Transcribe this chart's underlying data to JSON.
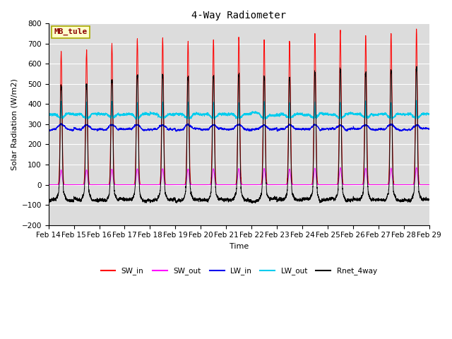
{
  "title": "4-Way Radiometer",
  "xlabel": "Time",
  "ylabel": "Solar Radiation (W/m2)",
  "ylim": [
    -200,
    800
  ],
  "yticks": [
    -200,
    -100,
    0,
    100,
    200,
    300,
    400,
    500,
    600,
    700,
    800
  ],
  "x_tick_labels": [
    "Feb 14",
    "Feb 15",
    "Feb 16",
    "Feb 17",
    "Feb 18",
    "Feb 19",
    "Feb 20",
    "Feb 21",
    "Feb 22",
    "Feb 23",
    "Feb 24",
    "Feb 25",
    "Feb 26",
    "Feb 27",
    "Feb 28",
    "Feb 29"
  ],
  "station_label": "MB_tule",
  "colors": {
    "SW_in": "#FF0000",
    "SW_out": "#FF00FF",
    "LW_in": "#0000EE",
    "LW_out": "#00CCEE",
    "Rnet_4way": "#000000"
  },
  "bg_color": "#DCDCDC",
  "fig_bg": "#FFFFFF",
  "n_days": 15,
  "points_per_day": 288,
  "SW_peaks": [
    660,
    670,
    700,
    720,
    725,
    710,
    720,
    730,
    720,
    710,
    745,
    760,
    740,
    750,
    770
  ],
  "LW_out_base": 350,
  "LW_out_spike": 80,
  "LW_in_base": 275,
  "LW_in_noise": 15,
  "Rnet_night": -85,
  "SW_rise": 0.29,
  "SW_set": 0.71,
  "SW_sharpness": 18
}
